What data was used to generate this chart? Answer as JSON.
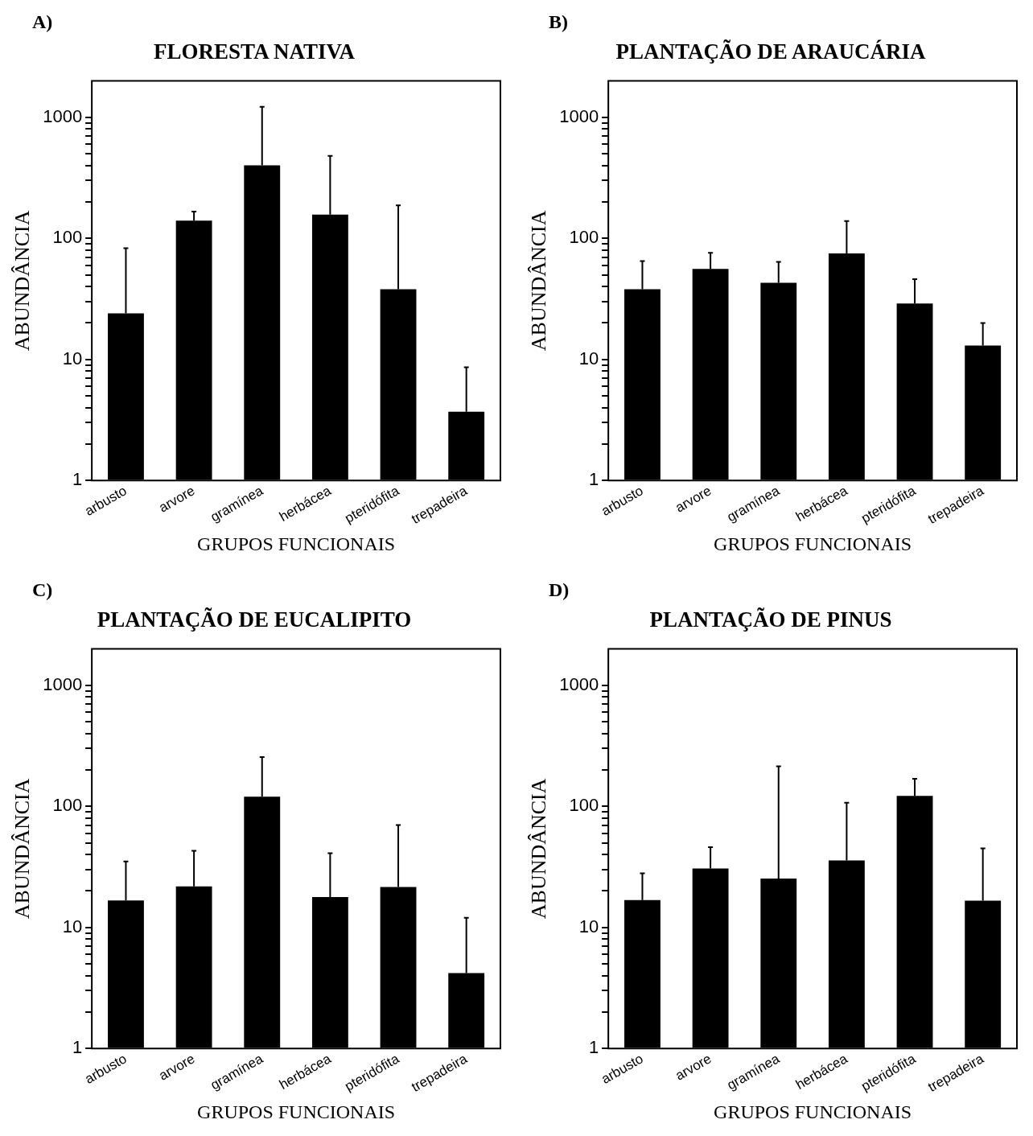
{
  "chart_data": [
    {
      "type": "bar",
      "annotations": [
        "A)"
      ],
      "title": "FLORESTA NATIVA",
      "xlabel": "GRUPOS FUNCIONAIS",
      "ylabel": "ABUNDÂNCIA",
      "categories": [
        "arbusto",
        "arvore",
        "gramínea",
        "herbácea",
        "pteridófita",
        "trepadeira"
      ],
      "color": "#000000",
      "values": [
        24,
        140,
        400,
        157,
        38,
        3.7
      ],
      "errors": [
        [
          24,
          83
        ],
        [
          140,
          166
        ],
        [
          400,
          1220
        ],
        [
          157,
          480
        ],
        [
          38,
          187
        ],
        [
          3.7,
          8.6
        ]
      ],
      "log": true,
      "ylim": [
        1,
        2000
      ],
      "yticks": [
        1,
        {
          "value": 2,
          "label": null
        },
        {
          "value": 3,
          "label": null
        },
        {
          "value": 4,
          "label": null
        },
        {
          "value": 5,
          "label": null
        },
        {
          "value": 6,
          "label": null
        },
        {
          "value": 7,
          "label": null
        },
        {
          "value": 8,
          "label": null
        },
        {
          "value": 9,
          "label": null
        },
        10,
        {
          "value": 20,
          "label": null
        },
        {
          "value": 30,
          "label": null
        },
        {
          "value": 40,
          "label": null
        },
        {
          "value": 50,
          "label": null
        },
        {
          "value": 60,
          "label": null
        },
        {
          "value": 70,
          "label": null
        },
        {
          "value": 80,
          "label": null
        },
        {
          "value": 90,
          "label": null
        },
        100,
        {
          "value": 200,
          "label": null
        },
        {
          "value": 300,
          "label": null
        },
        {
          "value": 400,
          "label": null
        },
        {
          "value": 500,
          "label": null
        },
        {
          "value": 600,
          "label": null
        },
        {
          "value": 700,
          "label": null
        },
        {
          "value": 800,
          "label": null
        },
        {
          "value": 900,
          "label": null
        },
        1000
      ]
    },
    {
      "type": "bar",
      "annotations": [
        "B)"
      ],
      "title": "PLANTAÇÃO DE ARAUCÁRIA",
      "xlabel": "GRUPOS FUNCIONAIS",
      "ylabel": "ABUNDÂNCIA",
      "categories": [
        "arbusto",
        "arvore",
        "gramínea",
        "herbácea",
        "pteridófita",
        "trepadeira"
      ],
      "color": "#000000",
      "values": [
        38,
        56,
        43,
        75,
        29,
        13
      ],
      "errors": [
        [
          38,
          65
        ],
        [
          56,
          76
        ],
        [
          43,
          64
        ],
        [
          75,
          139
        ],
        [
          29,
          46
        ],
        [
          13,
          20
        ]
      ],
      "log": true,
      "ylim": [
        1,
        2000
      ],
      "yticks": [
        1,
        {
          "value": 2,
          "label": null
        },
        {
          "value": 3,
          "label": null
        },
        {
          "value": 4,
          "label": null
        },
        {
          "value": 5,
          "label": null
        },
        {
          "value": 6,
          "label": null
        },
        {
          "value": 7,
          "label": null
        },
        {
          "value": 8,
          "label": null
        },
        {
          "value": 9,
          "label": null
        },
        10,
        {
          "value": 20,
          "label": null
        },
        {
          "value": 30,
          "label": null
        },
        {
          "value": 40,
          "label": null
        },
        {
          "value": 50,
          "label": null
        },
        {
          "value": 60,
          "label": null
        },
        {
          "value": 70,
          "label": null
        },
        {
          "value": 80,
          "label": null
        },
        {
          "value": 90,
          "label": null
        },
        100,
        {
          "value": 200,
          "label": null
        },
        {
          "value": 300,
          "label": null
        },
        {
          "value": 400,
          "label": null
        },
        {
          "value": 500,
          "label": null
        },
        {
          "value": 600,
          "label": null
        },
        {
          "value": 700,
          "label": null
        },
        {
          "value": 800,
          "label": null
        },
        {
          "value": 900,
          "label": null
        },
        1000
      ]
    },
    {
      "type": "bar",
      "annotations": [
        "C)"
      ],
      "title": "PLANTAÇÃO DE EUCALIPITO",
      "xlabel": "GRUPOS FUNCIONAIS",
      "ylabel": "ABUNDÂNCIA",
      "categories": [
        "arbusto",
        "arvore",
        "gramínea",
        "herbácea",
        "pteridófita",
        "trepadeira"
      ],
      "color": "#000000",
      "values": [
        16.7,
        21.8,
        120,
        17.8,
        21.6,
        4.2
      ],
      "errors": [
        [
          16.7,
          35
        ],
        [
          21.8,
          43
        ],
        [
          120,
          255
        ],
        [
          17.8,
          41
        ],
        [
          21.6,
          70
        ],
        [
          4.2,
          12
        ]
      ],
      "log": true,
      "ylim": [
        1,
        2000
      ],
      "yticks": [
        1,
        {
          "value": 2,
          "label": null
        },
        {
          "value": 3,
          "label": null
        },
        {
          "value": 4,
          "label": null
        },
        {
          "value": 5,
          "label": null
        },
        {
          "value": 6,
          "label": null
        },
        {
          "value": 7,
          "label": null
        },
        {
          "value": 8,
          "label": null
        },
        {
          "value": 9,
          "label": null
        },
        10,
        {
          "value": 20,
          "label": null
        },
        {
          "value": 30,
          "label": null
        },
        {
          "value": 40,
          "label": null
        },
        {
          "value": 50,
          "label": null
        },
        {
          "value": 60,
          "label": null
        },
        {
          "value": 70,
          "label": null
        },
        {
          "value": 80,
          "label": null
        },
        {
          "value": 90,
          "label": null
        },
        100,
        {
          "value": 200,
          "label": null
        },
        {
          "value": 300,
          "label": null
        },
        {
          "value": 400,
          "label": null
        },
        {
          "value": 500,
          "label": null
        },
        {
          "value": 600,
          "label": null
        },
        {
          "value": 700,
          "label": null
        },
        {
          "value": 800,
          "label": null
        },
        {
          "value": 900,
          "label": null
        },
        1000
      ]
    },
    {
      "type": "bar",
      "annotations": [
        "D)"
      ],
      "title": "PLANTAÇÃO DE PINUS",
      "xlabel": "GRUPOS FUNCIONAIS",
      "ylabel": "ABUNDÂNCIA",
      "categories": [
        "arbusto",
        "arvore",
        "gramínea",
        "herbácea",
        "pteridófita",
        "trepadeira"
      ],
      "color": "#000000",
      "values": [
        16.8,
        30.7,
        25.3,
        35.7,
        122,
        16.6
      ],
      "errors": [
        [
          16.8,
          28
        ],
        [
          30.7,
          46
        ],
        [
          25.3,
          214
        ],
        [
          35.7,
          107
        ],
        [
          122,
          169
        ],
        [
          16.6,
          45
        ]
      ],
      "log": true,
      "ylim": [
        1,
        2000
      ],
      "yticks": [
        1,
        {
          "value": 2,
          "label": null
        },
        {
          "value": 3,
          "label": null
        },
        {
          "value": 4,
          "label": null
        },
        {
          "value": 5,
          "label": null
        },
        {
          "value": 6,
          "label": null
        },
        {
          "value": 7,
          "label": null
        },
        {
          "value": 8,
          "label": null
        },
        {
          "value": 9,
          "label": null
        },
        10,
        {
          "value": 20,
          "label": null
        },
        {
          "value": 30,
          "label": null
        },
        {
          "value": 40,
          "label": null
        },
        {
          "value": 50,
          "label": null
        },
        {
          "value": 60,
          "label": null
        },
        {
          "value": 70,
          "label": null
        },
        {
          "value": 80,
          "label": null
        },
        {
          "value": 90,
          "label": null
        },
        100,
        {
          "value": 200,
          "label": null
        },
        {
          "value": 300,
          "label": null
        },
        {
          "value": 400,
          "label": null
        },
        {
          "value": 500,
          "label": null
        },
        {
          "value": 600,
          "label": null
        },
        {
          "value": 700,
          "label": null
        },
        {
          "value": 800,
          "label": null
        },
        {
          "value": 900,
          "label": null
        },
        1000
      ]
    }
  ]
}
